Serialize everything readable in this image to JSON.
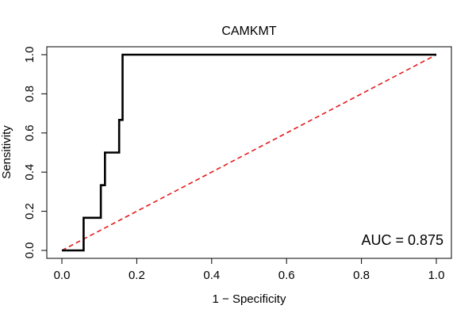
{
  "chart_data": {
    "type": "line",
    "title": "CAMKMT",
    "xlabel": "1 − Specificity",
    "ylabel": "Sensitivity",
    "xlim": [
      0,
      1
    ],
    "ylim": [
      0,
      1
    ],
    "x_ticks": [
      0.0,
      0.2,
      0.4,
      0.6,
      0.8,
      1.0
    ],
    "y_ticks": [
      0.0,
      0.2,
      0.4,
      0.6,
      0.8,
      1.0
    ],
    "x_tick_labels": [
      "0.0",
      "0.2",
      "0.4",
      "0.6",
      "0.8",
      "1.0"
    ],
    "y_tick_labels": [
      "0.0",
      "0.2",
      "0.4",
      "0.6",
      "0.8",
      "1.0"
    ],
    "grid": false,
    "series": [
      {
        "color": "#000000",
        "style": "solid",
        "x": [
          0.0,
          0.058,
          0.058,
          0.104,
          0.104,
          0.115,
          0.115,
          0.153,
          0.153,
          0.162,
          0.162,
          1.0
        ],
        "y": [
          0.0,
          0.0,
          0.167,
          0.167,
          0.333,
          0.333,
          0.5,
          0.5,
          0.667,
          0.667,
          1.0,
          1.0
        ]
      },
      {
        "color": "#e31a1c",
        "style": "dashed",
        "x": [
          0.0,
          1.0
        ],
        "y": [
          0.0,
          1.0
        ]
      }
    ],
    "annotation": {
      "text": "AUC = 0.875",
      "position": "bottom-right"
    }
  }
}
